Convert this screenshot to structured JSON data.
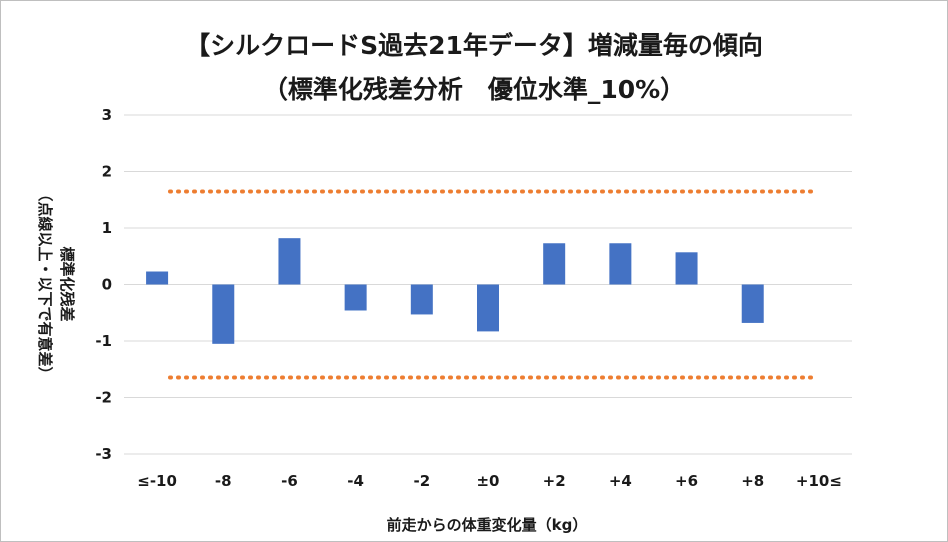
{
  "chart_data": {
    "type": "bar",
    "title": "【シルクロードS過去21年データ】増減量毎の傾向",
    "subtitle": "（標準化残差分析　優位水準_10%）",
    "xlabel": "前走からの体重変化量（kg）",
    "ylabel_main": "標準化残差",
    "ylabel_note": "（点線以上・以下で有意差）",
    "categories": [
      "≤-10",
      "-8",
      "-6",
      "-4",
      "-2",
      "±0",
      "+2",
      "+4",
      "+6",
      "+8",
      "+10≤"
    ],
    "values": [
      0.23,
      -1.05,
      0.82,
      -0.46,
      -0.53,
      -0.83,
      0.73,
      0.73,
      0.57,
      -0.68,
      null
    ],
    "ylim": [
      -3,
      3
    ],
    "yticks": [
      "-3",
      "-2",
      "-1",
      "0",
      "1",
      "2",
      "3"
    ],
    "threshold_upper": 1.645,
    "threshold_lower": -1.645,
    "grid": true,
    "legend": "none",
    "colors": {
      "bar": "#4472c4",
      "threshold": "#ed7d31",
      "grid": "#d9d9d9"
    }
  }
}
